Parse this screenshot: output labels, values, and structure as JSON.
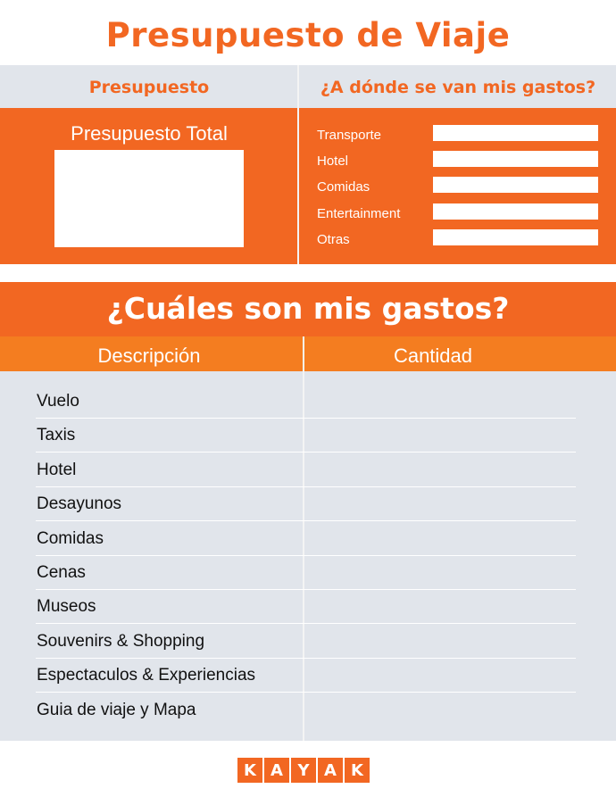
{
  "title": "Presupuesto de Viaje",
  "budget": {
    "header": "Presupuesto",
    "total_label": "Presupuesto Total"
  },
  "spending": {
    "header": "¿A dónde se van mis gastos?",
    "categories": [
      "Transporte",
      "Hotel",
      "Comidas",
      "Entertainment",
      "Otras"
    ]
  },
  "expenses": {
    "title": "¿Cuáles son mis gastos?",
    "col_description": "Descripción",
    "col_amount": "Cantidad",
    "rows": [
      "Vuelo",
      "Taxis",
      "Hotel",
      "Desayunos",
      "Comidas",
      "Cenas",
      "Museos",
      "Souvenirs & Shopping",
      "Espectaculos & Experiencias",
      "Guia de viaje y Mapa"
    ]
  },
  "logo": {
    "text": "KAYAK",
    "letters": [
      "K",
      "A",
      "Y",
      "A",
      "K"
    ]
  },
  "colors": {
    "orange": "#F26722",
    "light_orange": "#F47D20",
    "gray": "#E1E5EB"
  }
}
